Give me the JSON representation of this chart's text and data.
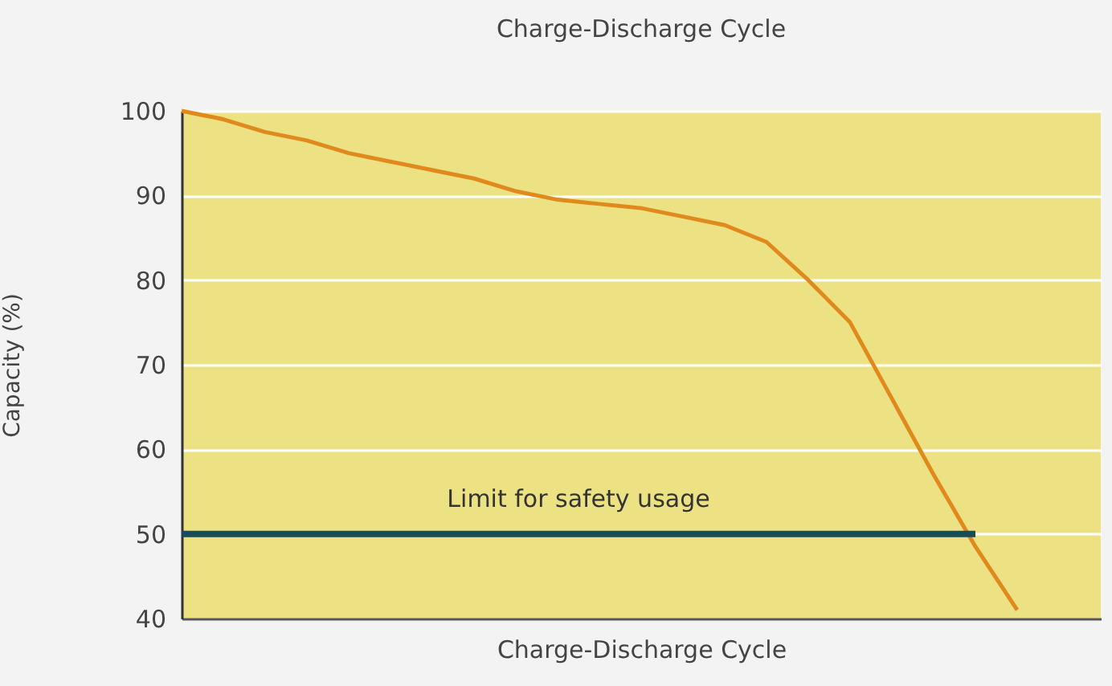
{
  "chart_data": {
    "type": "line",
    "title": "Charge-Discharge Cycle",
    "xlabel": "Charge-Discharge Cycle",
    "ylabel": "Capacity (%)",
    "categories": [
      null,
      null,
      null,
      null,
      null,
      null,
      null,
      null,
      null,
      null,
      null,
      null,
      null,
      null,
      null,
      null,
      null,
      null,
      null,
      null,
      null,
      null,
      null
    ],
    "series": [
      {
        "color": "#e08a1e",
        "values": [
          100,
          99,
          97.5,
          96.5,
          95,
          94,
          93,
          92,
          90.5,
          89.5,
          89,
          88.5,
          87.5,
          86.5,
          84.5,
          80,
          75,
          66,
          57,
          48.5,
          41,
          null,
          null
        ]
      },
      {
        "name": "Limit for safety usage",
        "color": "#1b4a5a",
        "values": [
          50,
          50,
          50,
          50,
          50,
          50,
          50,
          50,
          50,
          50,
          50,
          50,
          50,
          50,
          50,
          50,
          50,
          50,
          50,
          50,
          null,
          null,
          null
        ]
      }
    ],
    "ylim": [
      40,
      100
    ],
    "yticks": [
      40,
      50,
      60,
      70,
      80,
      90,
      100
    ],
    "grid": "y",
    "marker": "none",
    "line_style": "solid",
    "tick_labels": "y"
  }
}
